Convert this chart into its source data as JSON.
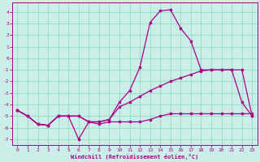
{
  "bg_color": "#cceee8",
  "grid_color": "#99ddcc",
  "line_color": "#aa0088",
  "xlabel": "Windchill (Refroidissement éolien,°C)",
  "xlim": [
    -0.5,
    23.5
  ],
  "ylim": [
    -7.5,
    4.8
  ],
  "yticks": [
    -7,
    -6,
    -5,
    -4,
    -3,
    -2,
    -1,
    0,
    1,
    2,
    3,
    4
  ],
  "xticks": [
    0,
    1,
    2,
    3,
    4,
    5,
    6,
    7,
    8,
    9,
    10,
    11,
    12,
    13,
    14,
    15,
    16,
    17,
    18,
    19,
    20,
    21,
    22,
    23
  ],
  "line_peak_x": [
    0,
    1,
    2,
    3,
    4,
    5,
    6,
    7,
    8,
    9,
    10,
    11,
    12,
    13,
    14,
    15,
    16,
    17,
    18,
    19,
    20,
    21,
    22,
    23
  ],
  "line_peak_y": [
    -4.5,
    -5.0,
    -5.7,
    -5.8,
    -5.0,
    -5.0,
    -5.0,
    -5.5,
    -5.5,
    -5.3,
    -3.8,
    -2.8,
    -0.8,
    3.1,
    4.1,
    4.2,
    2.6,
    1.5,
    -1.0,
    -1.0,
    -1.0,
    -1.0,
    -3.8,
    -5.0
  ],
  "line_diag_x": [
    0,
    1,
    2,
    3,
    4,
    5,
    6,
    7,
    8,
    9,
    10,
    11,
    12,
    13,
    14,
    15,
    16,
    17,
    18,
    19,
    20,
    21,
    22,
    23
  ],
  "line_diag_y": [
    -4.5,
    -5.0,
    -5.7,
    -5.8,
    -5.0,
    -5.0,
    -5.0,
    -5.5,
    -5.5,
    -5.3,
    -4.2,
    -3.8,
    -3.3,
    -2.8,
    -2.4,
    -2.0,
    -1.7,
    -1.4,
    -1.1,
    -1.0,
    -1.0,
    -1.0,
    -1.0,
    -5.0
  ],
  "line_flat_x": [
    0,
    1,
    2,
    3,
    4,
    5,
    6,
    7,
    8,
    9,
    10,
    11,
    12,
    13,
    14,
    15,
    16,
    17,
    18,
    19,
    20,
    21,
    22,
    23
  ],
  "line_flat_y": [
    -4.5,
    -5.0,
    -5.7,
    -5.8,
    -5.0,
    -5.0,
    -7.0,
    -5.5,
    -5.7,
    -5.5,
    -5.5,
    -5.5,
    -5.5,
    -5.3,
    -5.0,
    -4.8,
    -4.8,
    -4.8,
    -4.8,
    -4.8,
    -4.8,
    -4.8,
    -4.8,
    -4.8
  ]
}
